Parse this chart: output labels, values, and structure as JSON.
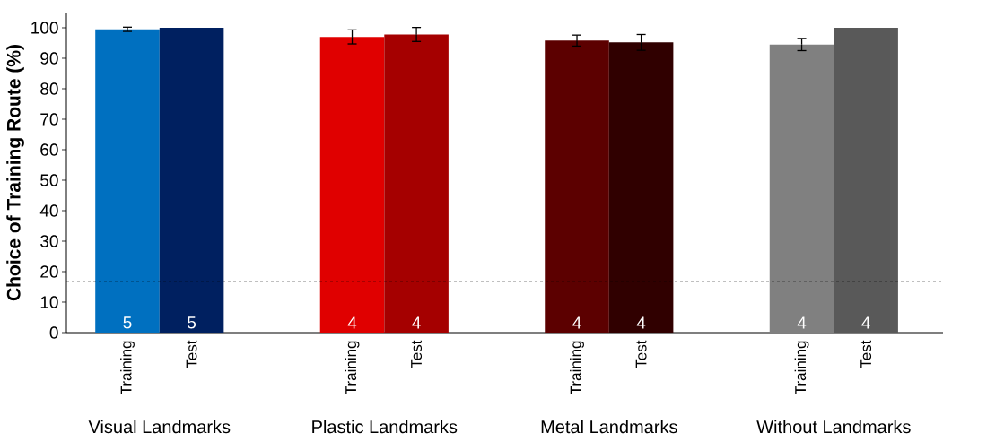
{
  "chart_data": {
    "type": "bar",
    "ylabel": "Choice of Training Route (%)",
    "categories": [
      "Training",
      "Test",
      "Training",
      "Test",
      "Training",
      "Test",
      "Training",
      "Test"
    ],
    "values": [
      99.5,
      100,
      97,
      97.8,
      95.8,
      95.2,
      94.5,
      100
    ],
    "errors": [
      0.7,
      null,
      2.3,
      2.3,
      1.8,
      2.6,
      2,
      null
    ],
    "colors": [
      "#0070c0",
      "#002060",
      "#e00000",
      "#a50000",
      "#5c0000",
      "#300000",
      "#808080",
      "#595959"
    ],
    "ylim": [
      0,
      105
    ],
    "yticks": [
      0,
      10,
      20,
      30,
      40,
      50,
      60,
      70,
      80,
      90,
      100
    ],
    "ref_lines": [
      {
        "axis": "y",
        "value": 16.7,
        "color": "#000000",
        "line_style": "dashed"
      }
    ],
    "annotations": [
      "Visual Landmarks",
      "Plastic Landmarks",
      "Metal Landmarks",
      "Without Landmarks",
      "5",
      "5",
      "4",
      "4",
      "4",
      "4",
      "4",
      "4"
    ]
  }
}
